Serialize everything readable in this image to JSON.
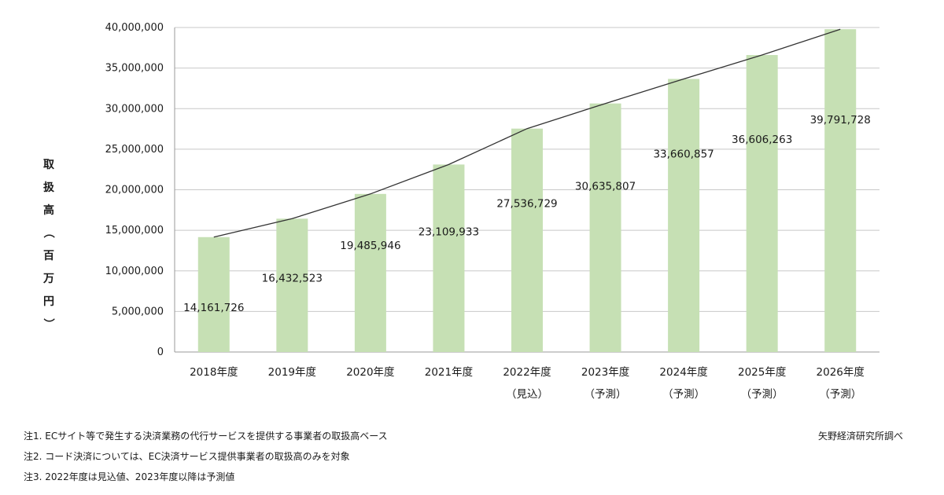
{
  "chart_data": {
    "type": "bar",
    "ylabel": "取扱高（百万円）",
    "ylim": [
      0,
      40000000
    ],
    "ytick_step": 5000000,
    "yticks": [
      "0",
      "5,000,000",
      "10,000,000",
      "15,000,000",
      "20,000,000",
      "25,000,000",
      "30,000,000",
      "35,000,000",
      "40,000,000"
    ],
    "categories": [
      {
        "label": "2018年度",
        "sub": ""
      },
      {
        "label": "2019年度",
        "sub": ""
      },
      {
        "label": "2020年度",
        "sub": ""
      },
      {
        "label": "2021年度",
        "sub": ""
      },
      {
        "label": "2022年度",
        "sub": "（見込）"
      },
      {
        "label": "2023年度",
        "sub": "（予測）"
      },
      {
        "label": "2024年度",
        "sub": "（予測）"
      },
      {
        "label": "2025年度",
        "sub": "（予測）"
      },
      {
        "label": "2026年度",
        "sub": "（予測）"
      }
    ],
    "values": [
      14161726,
      16432523,
      19485946,
      23109933,
      27536729,
      30635807,
      33660857,
      36606263,
      39791728
    ],
    "value_labels": [
      "14,161,726",
      "16,432,523",
      "19,485,946",
      "23,109,933",
      "27,536,729",
      "30,635,807",
      "33,660,857",
      "36,606,263",
      "39,791,728"
    ],
    "trend_line": true,
    "grid": true,
    "bar_color": "#c6e0b4",
    "grid_color": "#c8c8c8",
    "line_color": "#333333"
  },
  "notes": [
    "注1. ECサイト等で発生する決済業務の代行サービスを提供する事業者の取扱高ベース",
    "注2. コード決済については、EC決済サービス提供事業者の取扱高のみを対象",
    "注3. 2022年度は見込値、2023年度以降は予測値"
  ],
  "source": "矢野経済研究所調べ"
}
